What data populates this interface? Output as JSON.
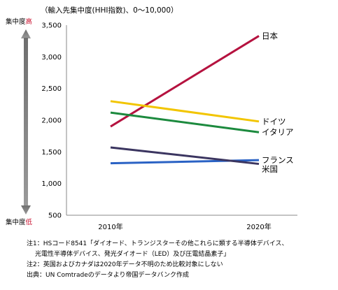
{
  "chart_data": {
    "type": "line",
    "unit_label": "（輸入先集中度(HHI指数)、0～10,000）",
    "categories": [
      "2010年",
      "2020年"
    ],
    "ylim": [
      500,
      3500
    ],
    "yticks": [
      "3,500",
      "3,000",
      "2,500",
      "2,000",
      "1,500",
      "1,000",
      "500"
    ],
    "ytick_values": [
      3500,
      3000,
      2500,
      2000,
      1500,
      1000,
      500
    ],
    "grid": false,
    "legend": "direct-labels",
    "side_axis": {
      "top_prefix": "集中度",
      "top_accent": "高",
      "bottom_prefix": "集中度",
      "bottom_accent": "低"
    },
    "series": [
      {
        "name": "日本",
        "color": "#b5123f",
        "values": [
          1900,
          3330
        ]
      },
      {
        "name": "ドイツ",
        "color": "#f2c500",
        "values": [
          2300,
          1980
        ]
      },
      {
        "name": "イタリア",
        "color": "#1c8a3e",
        "values": [
          2120,
          1810
        ]
      },
      {
        "name": "フランス",
        "color": "#2a62c4",
        "values": [
          1320,
          1370
        ]
      },
      {
        "name": "米国",
        "color": "#3b3560",
        "values": [
          1570,
          1310
        ]
      }
    ]
  },
  "notes": {
    "line1": "注1：HSコード8541「ダイオード、トランジスターその他これらに類する半導体デバイス、",
    "line2": "光電性半導体デバイス、発光ダイオード（LED）及び圧電結晶素子」",
    "line3": "注2：英国およびカナダは2020年データ不明のため比較対象にしない",
    "line4": "出典：UN Comtradeのデータより帝国データバンク作成"
  }
}
